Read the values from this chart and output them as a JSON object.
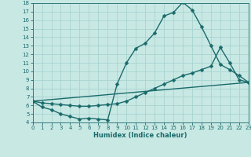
{
  "bg_color": "#c8e8e4",
  "line_color": "#1a6b6b",
  "grid_color": "#a8d4d0",
  "xlabel": "Humidex (Indice chaleur)",
  "xlim": [
    0,
    23
  ],
  "ylim": [
    4,
    18
  ],
  "xticks": [
    0,
    1,
    2,
    3,
    4,
    5,
    6,
    7,
    8,
    9,
    10,
    11,
    12,
    13,
    14,
    15,
    16,
    17,
    18,
    19,
    20,
    21,
    22,
    23
  ],
  "yticks": [
    4,
    5,
    6,
    7,
    8,
    9,
    10,
    11,
    12,
    13,
    14,
    15,
    16,
    17,
    18
  ],
  "line1_x": [
    0,
    1,
    2,
    3,
    4,
    5,
    6,
    7,
    8,
    9,
    10,
    11,
    12,
    13,
    14,
    15,
    16,
    17,
    18,
    19,
    20,
    21,
    22,
    23
  ],
  "line1_y": [
    6.5,
    5.8,
    5.5,
    5.0,
    4.7,
    4.4,
    4.5,
    4.4,
    4.3,
    8.5,
    11.0,
    12.7,
    13.3,
    14.5,
    16.5,
    16.9,
    18.1,
    17.2,
    15.2,
    13.0,
    10.8,
    10.2,
    9.5,
    8.7
  ],
  "line2_x": [
    0,
    1,
    2,
    3,
    4,
    5,
    6,
    7,
    8,
    9,
    10,
    11,
    12,
    13,
    14,
    15,
    16,
    17,
    18,
    19,
    20,
    21,
    22,
    23
  ],
  "line2_y": [
    6.5,
    6.3,
    6.2,
    6.1,
    6.0,
    5.9,
    5.9,
    6.0,
    6.1,
    6.2,
    6.5,
    7.0,
    7.5,
    8.0,
    8.5,
    9.0,
    9.5,
    9.8,
    10.2,
    10.6,
    12.8,
    11.0,
    9.0,
    8.7
  ],
  "line3_x": [
    0,
    23
  ],
  "line3_y": [
    6.5,
    8.7
  ]
}
